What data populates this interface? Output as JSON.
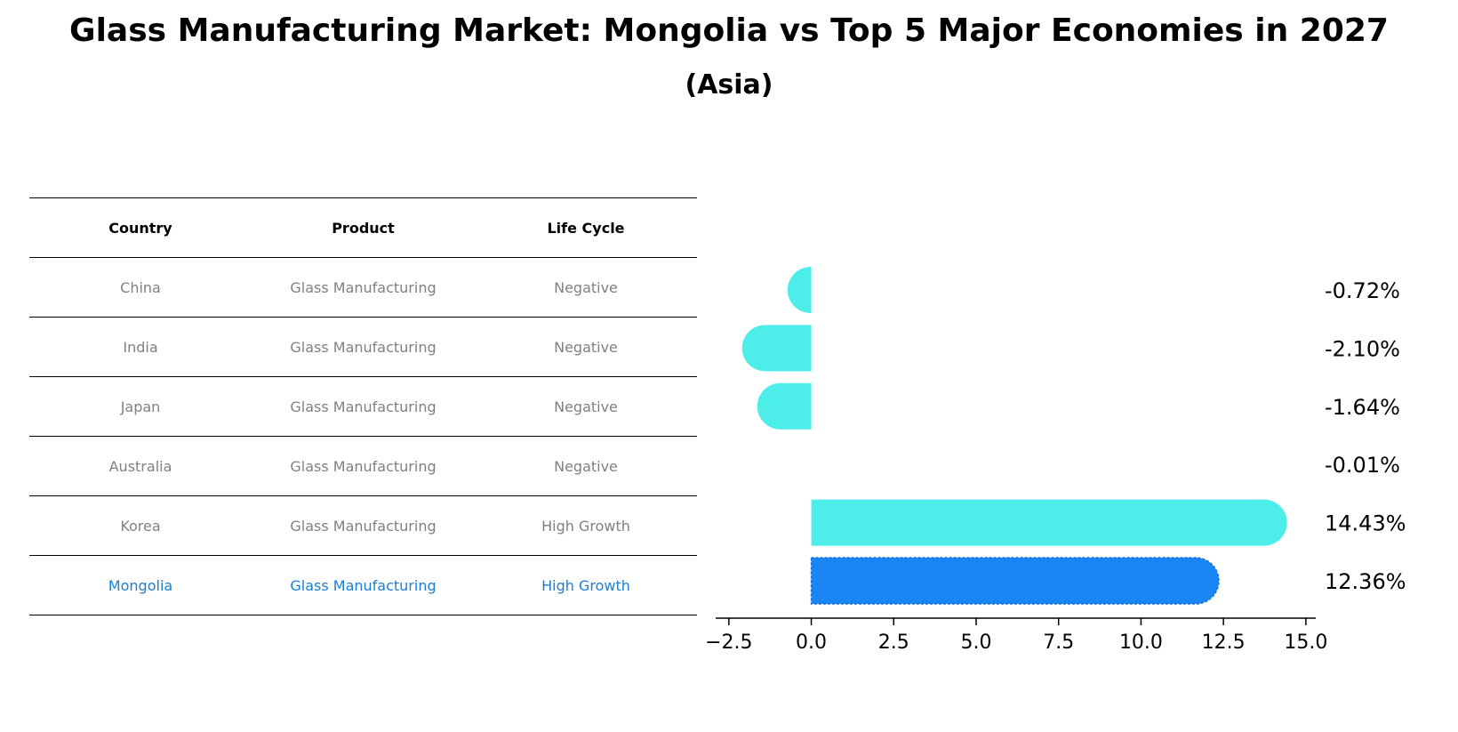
{
  "title": "Glass Manufacturing Market: Mongolia vs Top 5 Major Economies in 2027",
  "subtitle": "(Asia)",
  "table": {
    "headers": [
      "Country",
      "Product",
      "Life Cycle"
    ],
    "rows": [
      {
        "country": "China",
        "product": "Glass Manufacturing",
        "life_cycle": "Negative"
      },
      {
        "country": "India",
        "product": "Glass Manufacturing",
        "life_cycle": "Negative"
      },
      {
        "country": "Japan",
        "product": "Glass Manufacturing",
        "life_cycle": "Negative"
      },
      {
        "country": "Australia",
        "product": "Glass Manufacturing",
        "life_cycle": "Negative"
      },
      {
        "country": "Korea",
        "product": "Glass Manufacturing",
        "life_cycle": "High Growth"
      },
      {
        "country": "Mongolia",
        "product": "Glass Manufacturing",
        "life_cycle": "High Growth"
      }
    ],
    "highlight_color": "#1a7fd4",
    "text_color": "#808080"
  },
  "chart_data": {
    "type": "bar",
    "orientation": "horizontal",
    "categories": [
      "China",
      "India",
      "Japan",
      "Australia",
      "Korea",
      "Mongolia"
    ],
    "values": [
      -0.72,
      -2.1,
      -1.64,
      -0.01,
      14.43,
      12.36
    ],
    "labels": [
      "-0.72%",
      "-2.10%",
      "-1.64%",
      "-0.01%",
      "14.43%",
      "12.36%"
    ],
    "colors": [
      "#4deeea",
      "#4deeea",
      "#4deeea",
      "#4deeea",
      "#4deeea",
      "#1a85f5"
    ],
    "highlight": "Mongolia",
    "xlim": [
      -2.9,
      15.3
    ],
    "xticks": [
      -2.5,
      0.0,
      2.5,
      5.0,
      7.5,
      10.0,
      12.5,
      15.0
    ],
    "xtick_labels": [
      "−2.5",
      "0.0",
      "2.5",
      "5.0",
      "7.5",
      "10.0",
      "12.5",
      "15.0"
    ],
    "xlabel": "",
    "ylabel": "",
    "grid": false
  }
}
